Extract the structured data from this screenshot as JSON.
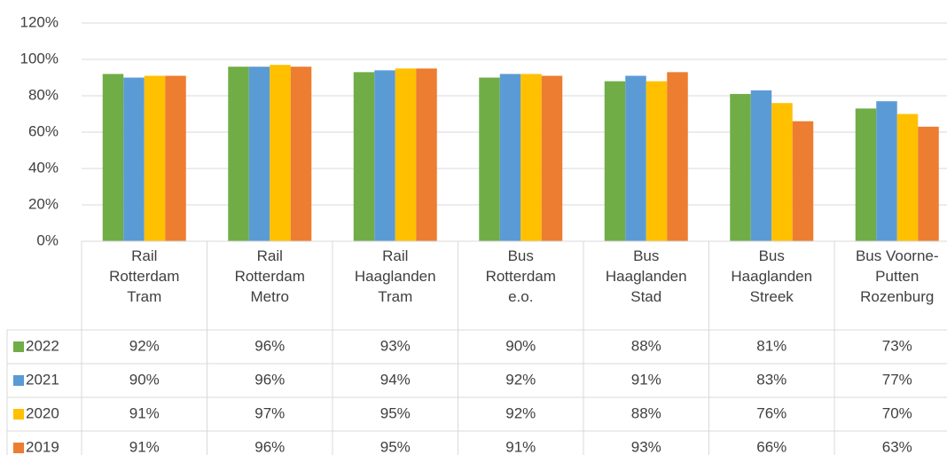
{
  "chart_data": {
    "type": "bar",
    "categories": [
      "Rail Rotterdam Tram",
      "Rail Rotterdam Metro",
      "Rail Haaglanden Tram",
      "Bus Rotterdam e.o.",
      "Bus Haaglanden Stad",
      "Bus Haaglanden Streek",
      "Bus Voorne-Putten Rozenburg"
    ],
    "series": [
      {
        "name": "2022",
        "color": "#70ad47",
        "values": [
          92,
          96,
          93,
          90,
          88,
          81,
          73
        ],
        "value_labels": [
          "92%",
          "96%",
          "93%",
          "90%",
          "88%",
          "81%",
          "73%"
        ]
      },
      {
        "name": "2021",
        "color": "#5b9bd5",
        "values": [
          90,
          96,
          94,
          92,
          91,
          83,
          77
        ],
        "value_labels": [
          "90%",
          "96%",
          "94%",
          "92%",
          "91%",
          "83%",
          "77%"
        ]
      },
      {
        "name": "2020",
        "color": "#ffc000",
        "values": [
          91,
          97,
          95,
          92,
          88,
          76,
          70
        ],
        "value_labels": [
          "91%",
          "97%",
          "95%",
          "92%",
          "88%",
          "76%",
          "70%"
        ]
      },
      {
        "name": "2019",
        "color": "#ed7d31",
        "values": [
          91,
          96,
          95,
          91,
          93,
          66,
          63
        ],
        "value_labels": [
          "91%",
          "96%",
          "95%",
          "91%",
          "93%",
          "66%",
          "63%"
        ]
      }
    ],
    "ylim": [
      0,
      120
    ],
    "yticks": [
      {
        "value": 0,
        "label": "0%"
      },
      {
        "value": 20,
        "label": "20%"
      },
      {
        "value": 40,
        "label": "40%"
      },
      {
        "value": 60,
        "label": "60%"
      },
      {
        "value": 80,
        "label": "80%"
      },
      {
        "value": 100,
        "label": "100%"
      },
      {
        "value": 120,
        "label": "120%"
      }
    ],
    "grid": true
  }
}
